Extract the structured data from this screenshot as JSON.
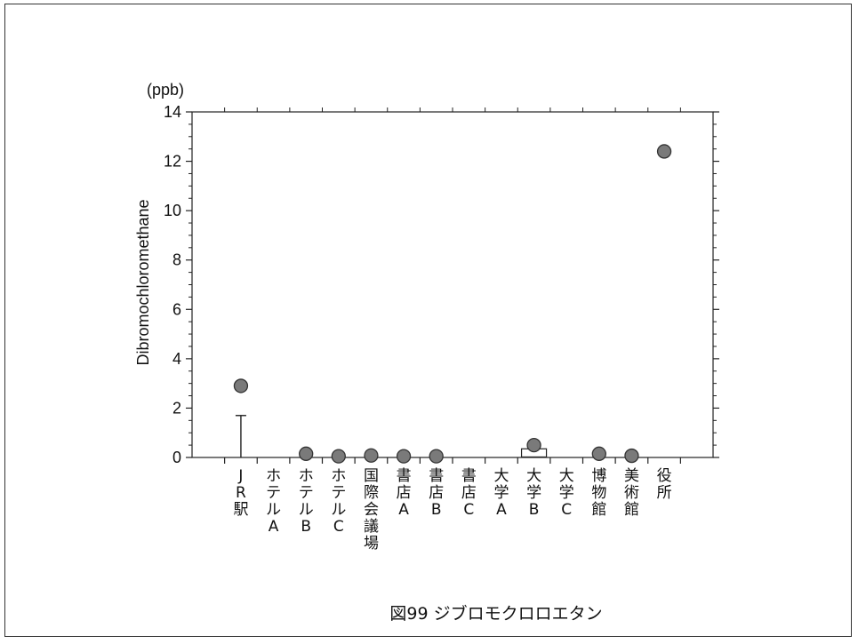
{
  "chart_data": {
    "type": "scatter",
    "unit_label": "(ppb)",
    "ylabel": "Dibromochloromethane",
    "ylim": [
      0,
      14
    ],
    "yticks": [
      "0",
      "2",
      "4",
      "6",
      "8",
      "10",
      "12",
      "14"
    ],
    "categories": [
      "JR駅",
      "ホテルA",
      "ホテルB",
      "ホテルC",
      "国際会議場",
      "書店A",
      "書店B",
      "書店C",
      "大学A",
      "大学B",
      "大学C",
      "博物館",
      "美術館",
      "役所"
    ],
    "series": [
      {
        "values": [
          2.9,
          null,
          0.15,
          0.05,
          0.08,
          0.05,
          0.05,
          null,
          null,
          0.5,
          null,
          0.15,
          0.07,
          12.4
        ]
      }
    ],
    "error_bars": [
      {
        "category": "JR駅",
        "low": 0,
        "high": 1.7
      }
    ],
    "box": {
      "category": "大学B",
      "low": 0.02,
      "high": 0.35
    },
    "caption": "図99 ジブロモクロロエタン",
    "marker_color": "#7a7a7a",
    "grid": false
  }
}
